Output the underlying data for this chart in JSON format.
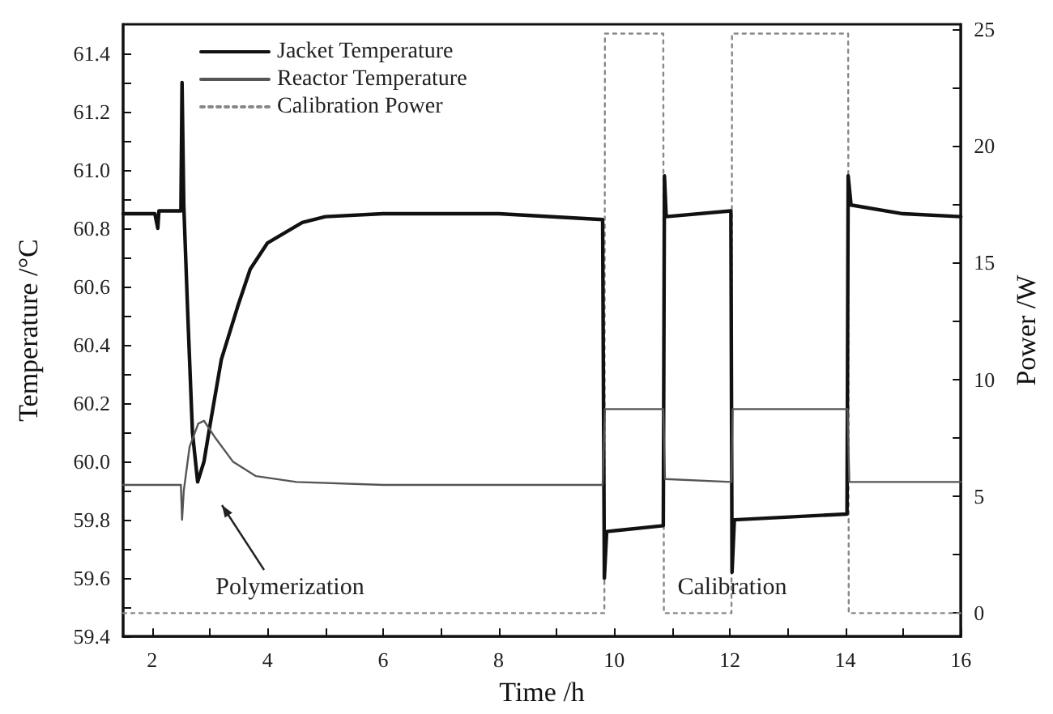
{
  "chart_data": {
    "type": "line",
    "xlabel": "Time /h",
    "ylabel": "Temperature /°C",
    "y2label": "Power /W",
    "xlim": [
      1.5,
      16
    ],
    "xticks": [
      2,
      {
        "value": 3,
        "label": null
      },
      4,
      {
        "value": 5,
        "label": null
      },
      6,
      {
        "value": 7,
        "label": null
      },
      8,
      {
        "value": 9,
        "label": null
      },
      10,
      {
        "value": 11,
        "label": null
      },
      12,
      {
        "value": 13,
        "label": null
      },
      14,
      {
        "value": 15,
        "label": null
      },
      16
    ],
    "ylim": [
      59.4,
      61.5
    ],
    "yticks": [
      59.4,
      {
        "value": 59.5,
        "label": null
      },
      59.6,
      {
        "value": 59.7,
        "label": null
      },
      59.8,
      {
        "value": 59.9,
        "label": null
      },
      {
        "value": 60,
        "label": "60.0"
      },
      {
        "value": 60.1,
        "label": null
      },
      60.2,
      {
        "value": 60.3,
        "label": null
      },
      60.4,
      {
        "value": 60.5,
        "label": null
      },
      60.6,
      {
        "value": 60.7,
        "label": null
      },
      60.8,
      {
        "value": 60.9,
        "label": null
      },
      {
        "value": 61,
        "label": "61.0"
      },
      {
        "value": 61.1,
        "label": null
      },
      61.2,
      {
        "value": 61.3,
        "label": null
      },
      61.4
    ],
    "y2lim": [
      -1,
      25.2
    ],
    "y2ticks": [
      0,
      {
        "value": 2.5,
        "label": null
      },
      5,
      {
        "value": 7.5,
        "label": null
      },
      10,
      {
        "value": 12.5,
        "label": null
      },
      15,
      {
        "value": 17.5,
        "label": null
      },
      20,
      {
        "value": 22.5,
        "label": null
      },
      25
    ],
    "grid": false,
    "legend": "top left",
    "marker": "none",
    "series": [
      {
        "name": "Jacket Temperature",
        "color": "#111111",
        "line_style": "solid",
        "x": [
          1.5,
          2.05,
          2.1,
          2.12,
          2.5,
          2.52,
          2.55,
          2.62,
          2.7,
          2.79,
          2.9,
          3.0,
          3.2,
          3.48,
          3.7,
          4.0,
          4.6,
          5.0,
          6,
          8,
          9.8,
          9.83,
          9.87,
          10.85,
          10.87,
          10.9,
          12.02,
          12.04,
          12.08,
          14.03,
          14.05,
          14.1,
          15,
          16
        ],
        "values": [
          60.85,
          60.85,
          60.8,
          60.86,
          60.86,
          61.3,
          60.88,
          60.5,
          60.1,
          59.93,
          60.0,
          60.12,
          60.35,
          60.53,
          60.66,
          60.75,
          60.82,
          60.84,
          60.85,
          60.85,
          60.83,
          59.6,
          59.76,
          59.78,
          60.98,
          60.84,
          60.86,
          59.62,
          59.8,
          59.82,
          60.98,
          60.88,
          60.85,
          60.84
        ]
      },
      {
        "name": "Reactor Temperature",
        "color": "#555555",
        "line_style": "solid",
        "x": [
          1.5,
          2.5,
          2.52,
          2.55,
          2.65,
          2.8,
          2.9,
          3.1,
          3.4,
          3.8,
          4.5,
          6,
          9.8,
          9.84,
          10.85,
          10.88,
          12.03,
          12.05,
          14.04,
          14.07,
          16
        ],
        "values": [
          59.92,
          59.92,
          59.8,
          59.9,
          60.05,
          60.13,
          60.14,
          60.08,
          60.0,
          59.95,
          59.93,
          59.92,
          59.92,
          60.18,
          60.18,
          59.94,
          59.93,
          60.18,
          60.18,
          59.93,
          59.93
        ]
      },
      {
        "name": "Calibration Power",
        "color": "#888888",
        "line_style": "dotted",
        "axis": "y2",
        "x": [
          1.5,
          9.83,
          9.84,
          10.85,
          10.86,
          12.03,
          12.04,
          14.05,
          14.06,
          16
        ],
        "values": [
          0,
          0,
          24.8,
          24.8,
          0,
          0,
          24.8,
          24.8,
          0,
          0
        ]
      }
    ],
    "annotations": [
      "Polymerization",
      "Calibration"
    ]
  }
}
